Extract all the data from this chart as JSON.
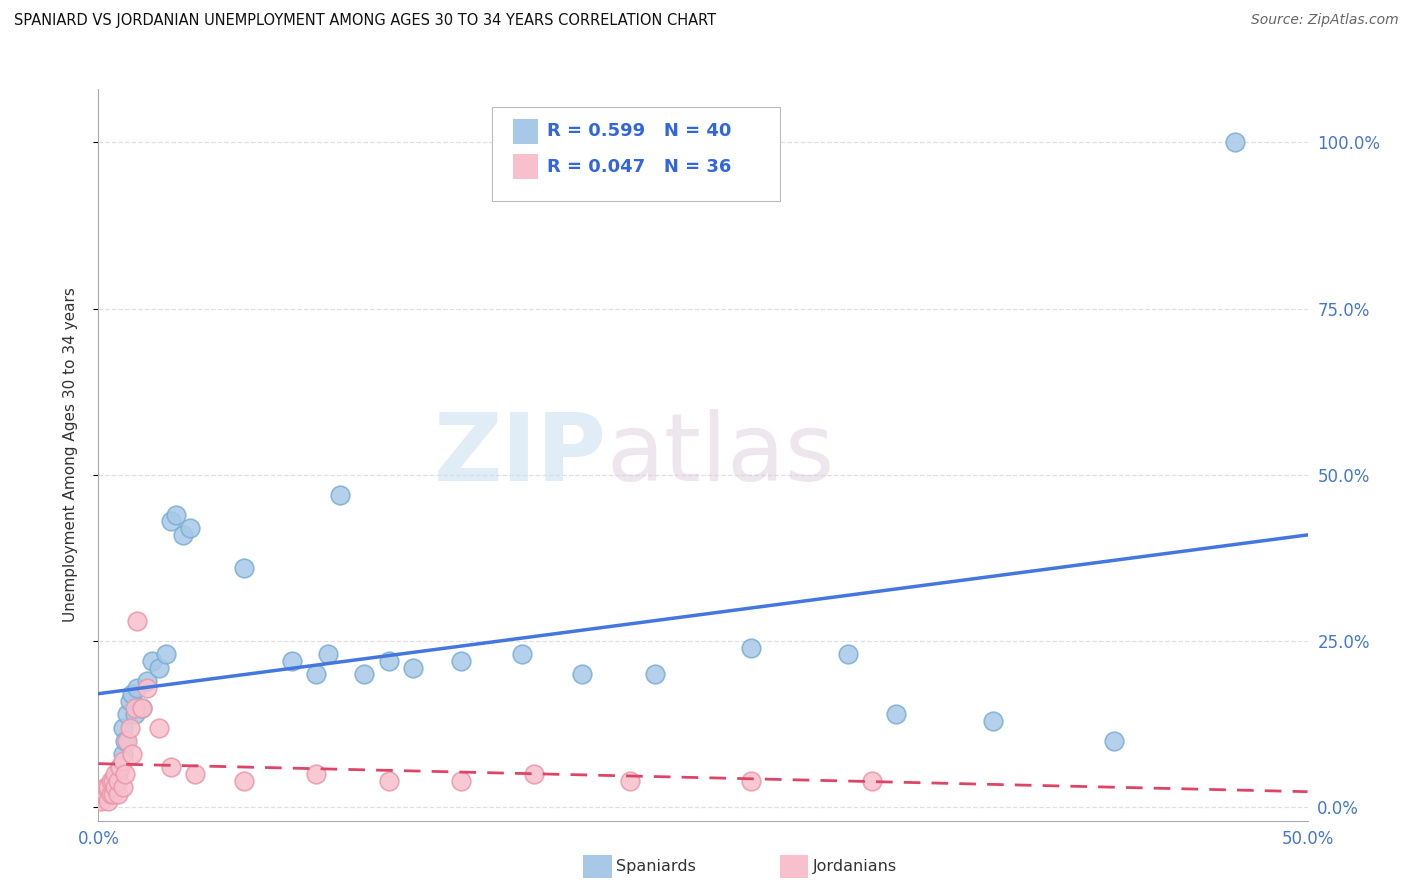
{
  "title": "SPANIARD VS JORDANIAN UNEMPLOYMENT AMONG AGES 30 TO 34 YEARS CORRELATION CHART",
  "source": "Source: ZipAtlas.com",
  "ylabel": "Unemployment Among Ages 30 to 34 years",
  "xlim": [
    0.0,
    0.5
  ],
  "ylim": [
    -0.02,
    1.08
  ],
  "yticks": [
    0.0,
    0.25,
    0.5,
    0.75,
    1.0
  ],
  "ytick_labels_right": [
    "0.0%",
    "25.0%",
    "50.0%",
    "75.0%",
    "100.0%"
  ],
  "xtick_labels": [
    "0.0%",
    "",
    "",
    "",
    "",
    "50.0%"
  ],
  "background_color": "#ffffff",
  "watermark_zip": "ZIP",
  "watermark_atlas": "atlas",
  "legend_R_spaniards": "R = 0.599",
  "legend_N_spaniards": "N = 40",
  "legend_R_jordanians": "R = 0.047",
  "legend_N_jordanians": "N = 36",
  "spaniards_color_face": "#a8c8e8",
  "spaniards_color_edge": "#7bafd4",
  "jordanians_color_face": "#f8c0cc",
  "jordanians_color_edge": "#e898aa",
  "spaniards_line_color": "#4477dd",
  "jordanians_line_color": "#dd4466",
  "grid_color": "#dddddd",
  "spaniards_x": [
    0.003,
    0.005,
    0.007,
    0.008,
    0.009,
    0.01,
    0.01,
    0.011,
    0.012,
    0.013,
    0.014,
    0.015,
    0.016,
    0.018,
    0.02,
    0.022,
    0.025,
    0.028,
    0.03,
    0.032,
    0.035,
    0.038,
    0.06,
    0.08,
    0.09,
    0.095,
    0.1,
    0.11,
    0.12,
    0.13,
    0.15,
    0.175,
    0.2,
    0.23,
    0.27,
    0.31,
    0.33,
    0.37,
    0.42,
    0.47
  ],
  "spaniards_y": [
    0.02,
    0.03,
    0.04,
    0.05,
    0.06,
    0.08,
    0.12,
    0.1,
    0.14,
    0.16,
    0.17,
    0.14,
    0.18,
    0.15,
    0.19,
    0.22,
    0.21,
    0.23,
    0.43,
    0.44,
    0.41,
    0.42,
    0.36,
    0.22,
    0.2,
    0.23,
    0.47,
    0.2,
    0.22,
    0.21,
    0.22,
    0.23,
    0.2,
    0.2,
    0.24,
    0.23,
    0.14,
    0.13,
    0.1,
    1.0
  ],
  "jordanians_x": [
    0.001,
    0.002,
    0.003,
    0.003,
    0.004,
    0.004,
    0.005,
    0.005,
    0.006,
    0.006,
    0.007,
    0.007,
    0.008,
    0.008,
    0.009,
    0.01,
    0.01,
    0.011,
    0.012,
    0.013,
    0.014,
    0.015,
    0.016,
    0.018,
    0.02,
    0.025,
    0.03,
    0.04,
    0.06,
    0.09,
    0.12,
    0.15,
    0.18,
    0.22,
    0.27,
    0.32
  ],
  "jordanians_y": [
    0.01,
    0.02,
    0.02,
    0.03,
    0.01,
    0.03,
    0.02,
    0.04,
    0.02,
    0.04,
    0.03,
    0.05,
    0.02,
    0.04,
    0.06,
    0.03,
    0.07,
    0.05,
    0.1,
    0.12,
    0.08,
    0.15,
    0.28,
    0.15,
    0.18,
    0.12,
    0.06,
    0.05,
    0.04,
    0.05,
    0.04,
    0.04,
    0.05,
    0.04,
    0.04,
    0.04
  ]
}
